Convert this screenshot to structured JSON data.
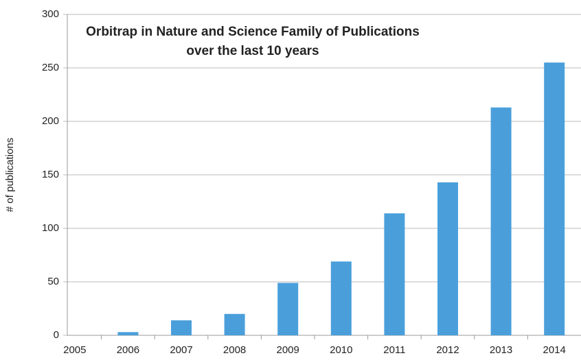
{
  "chart_data": {
    "type": "bar",
    "title": [
      "Orbitrap in Nature and Science Family of Publications",
      "over the last 10 years"
    ],
    "y_label": "# of publications",
    "categories": [
      "2005",
      "2006",
      "2007",
      "2008",
      "2009",
      "2010",
      "2011",
      "2012",
      "2013",
      "2014"
    ],
    "values": [
      0,
      3,
      14,
      20,
      49,
      69,
      114,
      143,
      213,
      255
    ],
    "color": "#4a9fdb",
    "ylim": [
      0,
      300
    ],
    "yticks": [
      0,
      50,
      100,
      150,
      200,
      250,
      300
    ],
    "grid": true
  }
}
